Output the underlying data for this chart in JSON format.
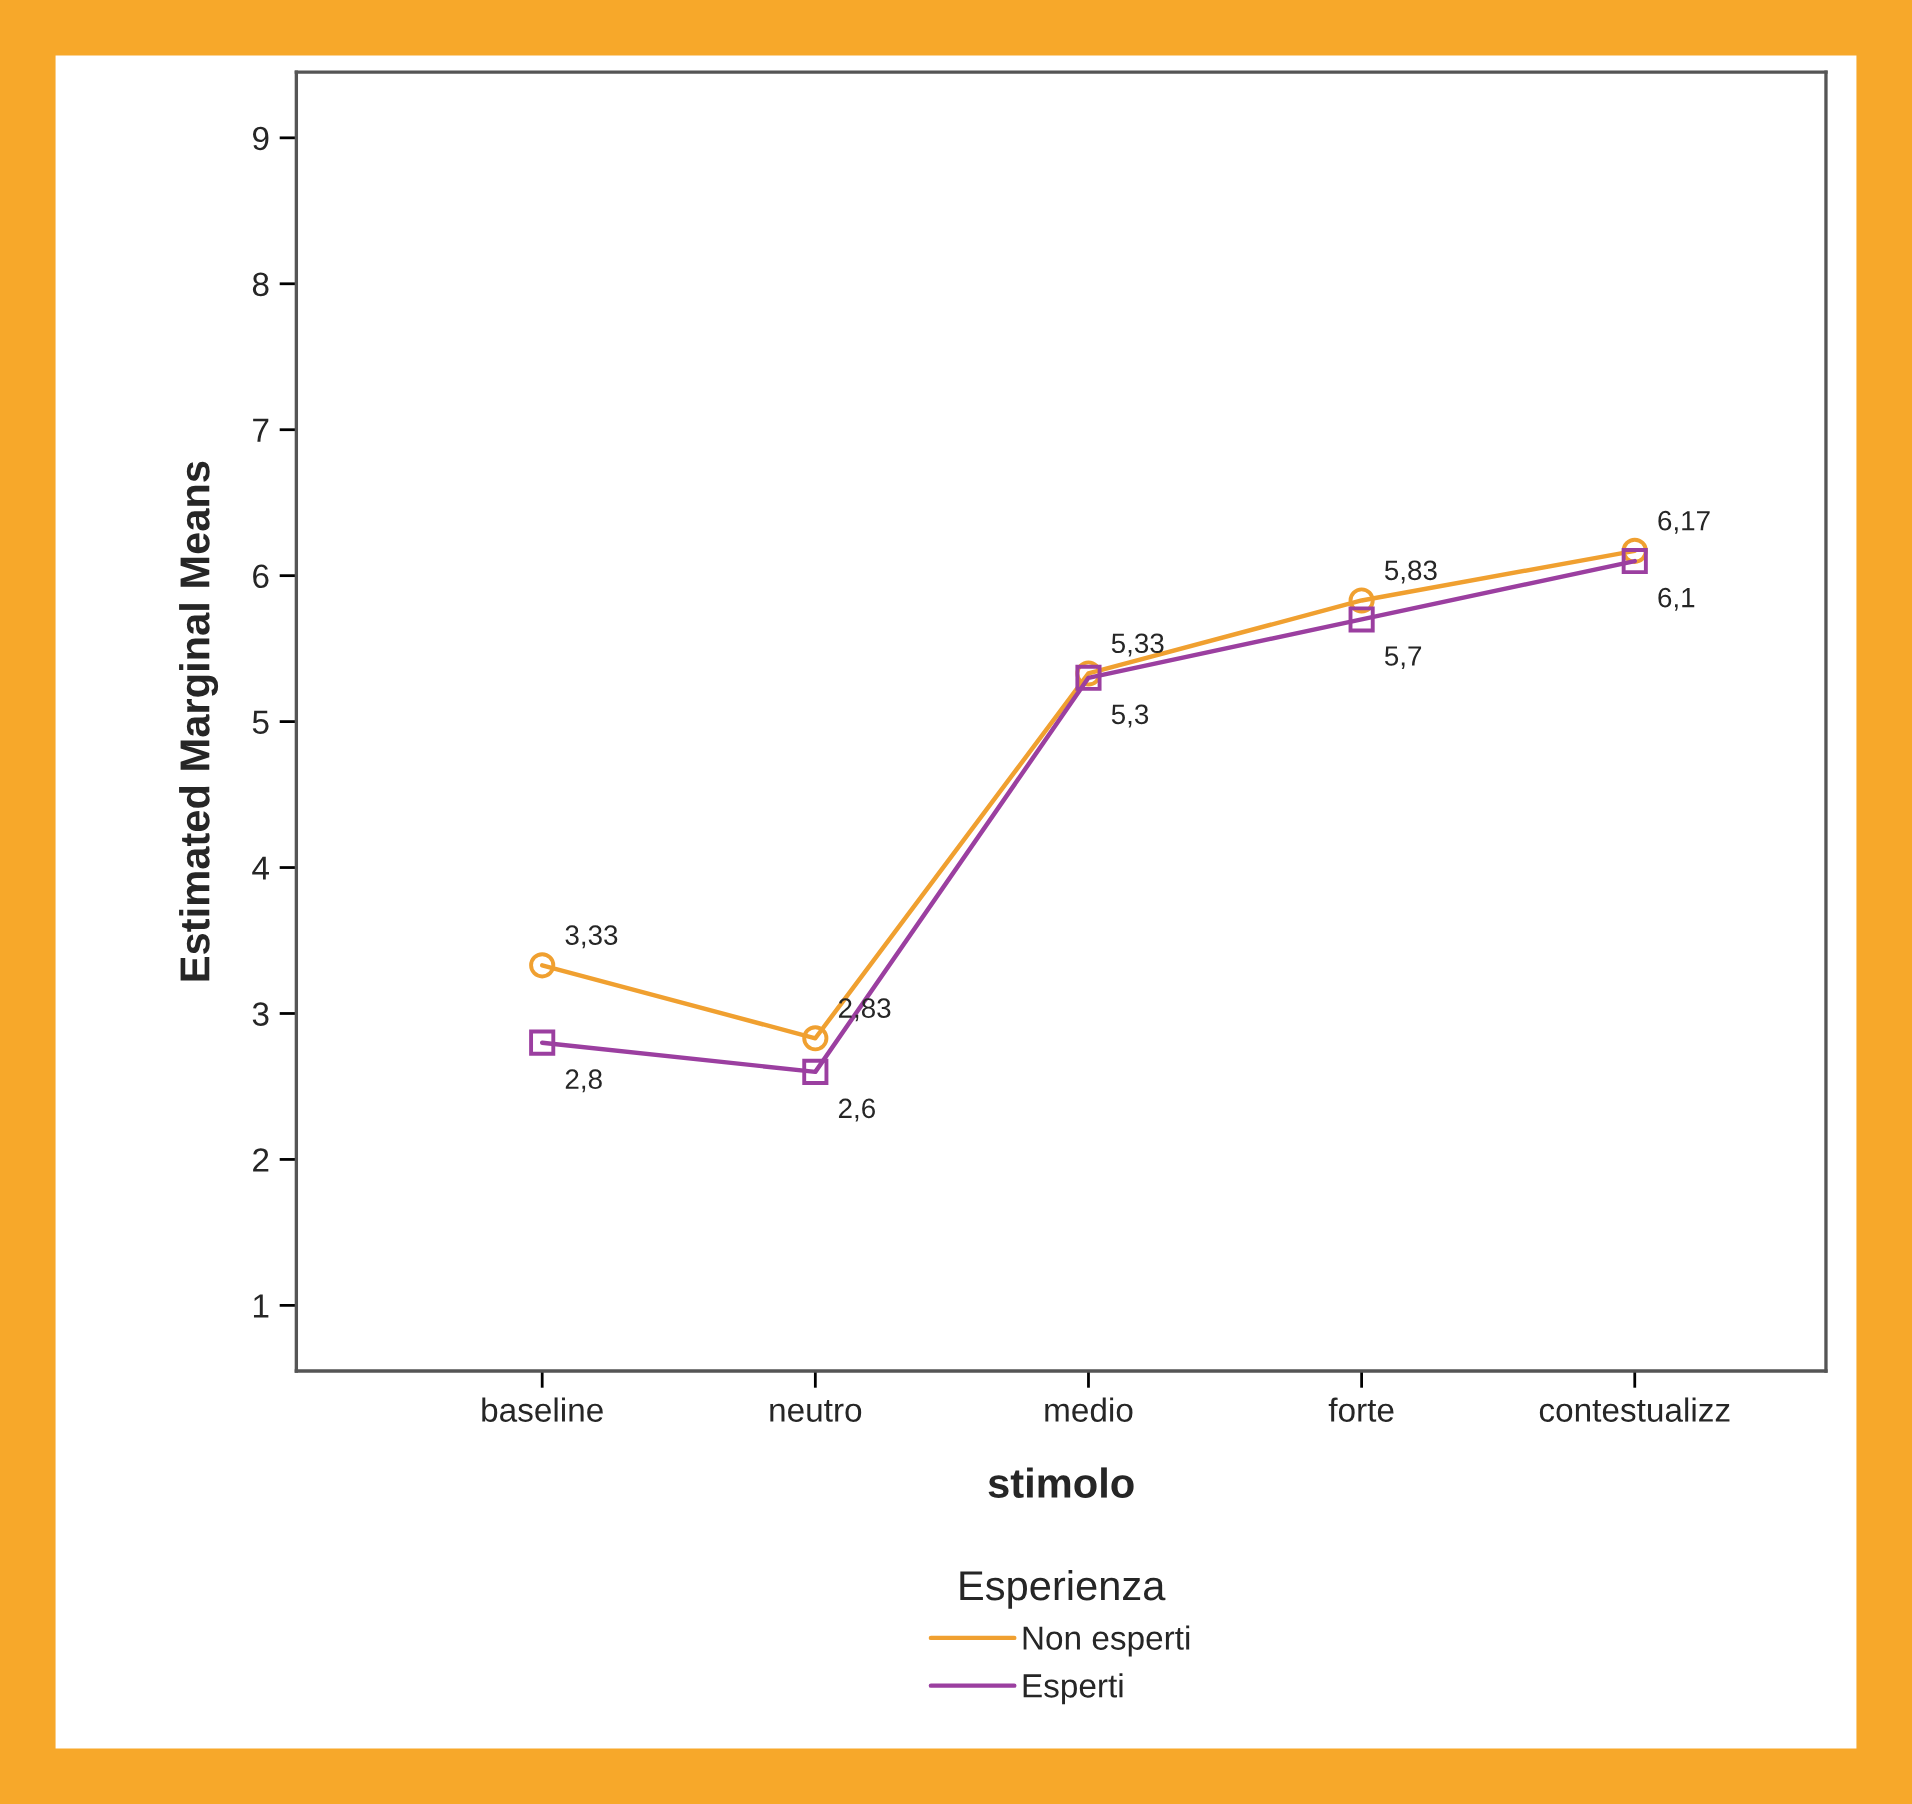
{
  "chart_data": {
    "type": "line",
    "xlabel": "stimolo",
    "ylabel": "Estimated Marginal Means",
    "legend_title": "Esperienza",
    "categories": [
      "baseline",
      "neutro",
      "medio",
      "forte",
      "contestualizz"
    ],
    "series": [
      {
        "name": "Non esperti",
        "color": "#f0a030",
        "marker": "circle",
        "values": [
          3.33,
          2.83,
          5.33,
          5.83,
          6.17
        ],
        "value_labels": [
          "3,33",
          "2,83",
          "5,33",
          "5,83",
          "6,17"
        ]
      },
      {
        "name": "Esperti",
        "color": "#9b3fa0",
        "marker": "square",
        "values": [
          2.8,
          2.6,
          5.3,
          5.7,
          6.1
        ],
        "value_labels": [
          "2,8",
          "2,6",
          "5,3",
          "5,7",
          "6,1"
        ]
      }
    ],
    "ylim": [
      0.55,
      9.45
    ],
    "yticks": [
      1,
      2,
      3,
      4,
      5,
      6,
      7,
      8,
      9
    ],
    "grid": false,
    "legend": "bottom",
    "line_style": "solid"
  }
}
